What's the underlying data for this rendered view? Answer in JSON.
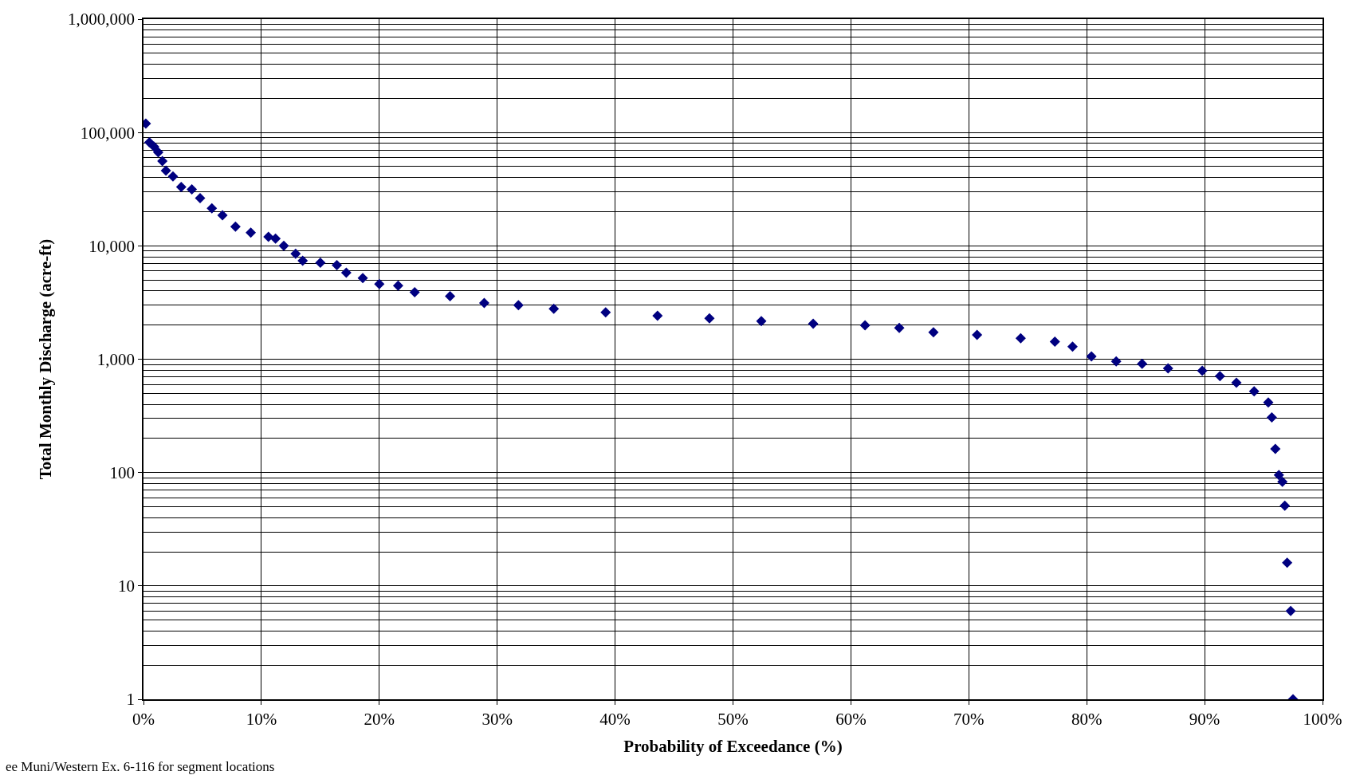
{
  "chart_data": {
    "type": "scatter",
    "xlabel": "Probability of Exceedance (%)",
    "ylabel": "Total Monthly Discharge (acre-ft)",
    "annotations": [
      "ee Muni/Western Ex. 6-116 for segment locations"
    ],
    "log": "y",
    "grid": true,
    "marker": "diamond",
    "xlim": [
      0,
      100
    ],
    "xticks": [
      {
        "value": 0,
        "label": "0%"
      },
      {
        "value": 10,
        "label": "10%"
      },
      {
        "value": 20,
        "label": "20%"
      },
      {
        "value": 30,
        "label": "30%"
      },
      {
        "value": 40,
        "label": "40%"
      },
      {
        "value": 50,
        "label": "50%"
      },
      {
        "value": 60,
        "label": "60%"
      },
      {
        "value": 70,
        "label": "70%"
      },
      {
        "value": 80,
        "label": "80%"
      },
      {
        "value": 90,
        "label": "90%"
      },
      {
        "value": 100,
        "label": "100%"
      }
    ],
    "ylim": [
      1,
      1000000
    ],
    "yticks": [
      1,
      10,
      100,
      {
        "value": 1000,
        "label": "1,000"
      },
      {
        "value": 10000,
        "label": "10,000"
      },
      {
        "value": 100000,
        "label": "100,000"
      },
      {
        "value": 1000000,
        "label": "1,000,000"
      }
    ],
    "series": [
      {
        "color": "#000080",
        "x": [
          0.2,
          0.5,
          0.9,
          1.25,
          1.6,
          1.9,
          2.5,
          3.2,
          4.1,
          4.8,
          5.8,
          6.7,
          7.8,
          9.1,
          10.6,
          11.2,
          11.9,
          12.9,
          13.5,
          15,
          16.4,
          17.2,
          18.6,
          20,
          21.6,
          23,
          26,
          28.9,
          31.8,
          34.8,
          39.2,
          43.6,
          48,
          52.4,
          56.8,
          61.2,
          64.1,
          67,
          70.7,
          74.4,
          77.3,
          78.8,
          80.4,
          82.5,
          84.7,
          86.9,
          89.8,
          91.3,
          92.7,
          94.2,
          95.4,
          95.7,
          96,
          96.3,
          96.6,
          96.8,
          97,
          97.3,
          97.5
        ],
        "values": [
          120000,
          82000,
          75000,
          67000,
          56000,
          46000,
          41000,
          33000,
          31500,
          26400,
          21400,
          18600,
          14800,
          13100,
          12000,
          11600,
          10000,
          8500,
          7400,
          7100,
          6750,
          5800,
          5200,
          4600,
          4450,
          3900,
          3600,
          3130,
          3000,
          2780,
          2590,
          2420,
          2290,
          2170,
          2060,
          1990,
          1890,
          1730,
          1640,
          1530,
          1430,
          1290,
          1060,
          955,
          910,
          830,
          790,
          710,
          620,
          520,
          415,
          307,
          162,
          95,
          83,
          51,
          16,
          6,
          1
        ]
      }
    ]
  }
}
